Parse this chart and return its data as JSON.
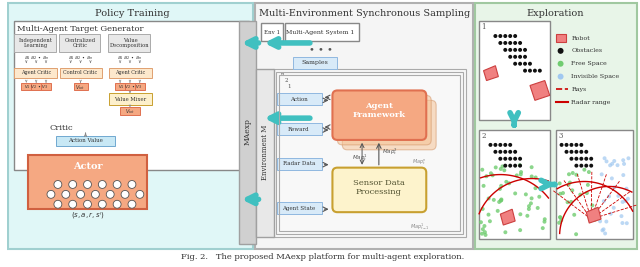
{
  "title": "Fig. 2.   The proposed MAexp platform for multi-agent exploration.",
  "section_a_title": "Policy Training",
  "section_b_title": "Multi-Environment Synchronous Sampling",
  "section_c_title": "Exploration",
  "bg_a": "#e0f7f7",
  "bg_b": "#f0f0f0",
  "bg_c": "#e8f5e8",
  "box_orange_light": "#f5c6a0",
  "box_orange": "#f0956a",
  "box_blue_light": "#c5ddf5",
  "box_gray": "#d0d0d0",
  "box_yellow_light": "#fdf3cc",
  "arrow_cyan": "#40c0c0",
  "text_dark": "#222222",
  "legend_robot": "#f08080",
  "legend_ray": "#cc0000"
}
